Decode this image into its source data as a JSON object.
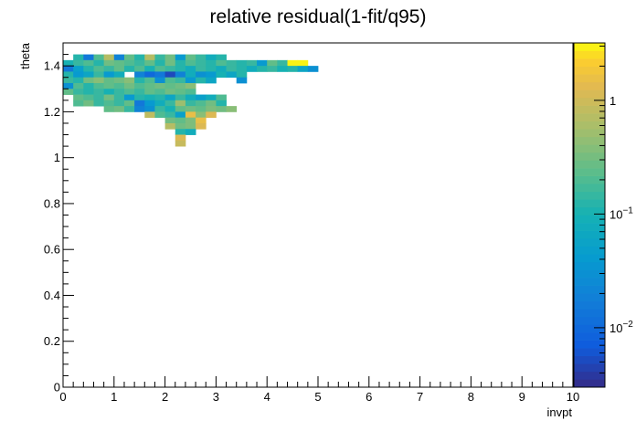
{
  "chart_data": {
    "type": "heatmap",
    "title": "relative residual(1-fit/q95)",
    "xlabel": "invpt",
    "ylabel": "theta",
    "xlim": [
      0,
      10
    ],
    "ylim": [
      0,
      1.5
    ],
    "x_ticks": [
      "0",
      "1",
      "2",
      "3",
      "4",
      "5",
      "6",
      "7",
      "8",
      "9",
      "10"
    ],
    "y_ticks": [
      "0",
      "0.2",
      "0.4",
      "0.6",
      "0.8",
      "1",
      "1.2",
      "1.4"
    ],
    "x_bin_width": 0.2,
    "y_bin_width": 0.025,
    "colorbar": {
      "scale": "log",
      "range": [
        0.003,
        3.2
      ],
      "ticks": [
        {
          "value": 0.01,
          "base": "10",
          "exp": "−2"
        },
        {
          "value": 0.1,
          "base": "10",
          "exp": "−1"
        },
        {
          "value": 1,
          "base": "1",
          "exp": ""
        }
      ]
    },
    "cells": [
      [
        0.2,
        1.425,
        0.12
      ],
      [
        0.4,
        1.425,
        0.015
      ],
      [
        0.6,
        1.425,
        0.2
      ],
      [
        0.8,
        1.425,
        0.7
      ],
      [
        1.0,
        1.425,
        0.02
      ],
      [
        1.2,
        1.425,
        0.25
      ],
      [
        1.4,
        1.425,
        0.12
      ],
      [
        1.6,
        1.425,
        0.7
      ],
      [
        1.8,
        1.425,
        0.15
      ],
      [
        2.0,
        1.425,
        0.3
      ],
      [
        2.2,
        1.425,
        0.04
      ],
      [
        2.4,
        1.425,
        0.25
      ],
      [
        2.6,
        1.425,
        0.15
      ],
      [
        2.8,
        1.425,
        0.08
      ],
      [
        3.0,
        1.425,
        0.12
      ],
      [
        0.0,
        1.4,
        0.1
      ],
      [
        0.2,
        1.4,
        0.15
      ],
      [
        0.4,
        1.4,
        0.2
      ],
      [
        0.6,
        1.4,
        0.12
      ],
      [
        0.8,
        1.4,
        0.3
      ],
      [
        1.0,
        1.4,
        0.25
      ],
      [
        1.2,
        1.4,
        0.2
      ],
      [
        1.4,
        1.4,
        0.15
      ],
      [
        1.6,
        1.4,
        0.25
      ],
      [
        1.8,
        1.4,
        0.12
      ],
      [
        2.0,
        1.4,
        0.3
      ],
      [
        2.2,
        1.4,
        0.12
      ],
      [
        2.4,
        1.4,
        0.2
      ],
      [
        2.6,
        1.4,
        0.15
      ],
      [
        2.8,
        1.4,
        0.12
      ],
      [
        3.0,
        1.4,
        0.2
      ],
      [
        3.2,
        1.4,
        0.15
      ],
      [
        3.4,
        1.4,
        0.12
      ],
      [
        3.6,
        1.4,
        0.15
      ],
      [
        3.8,
        1.4,
        0.04
      ],
      [
        4.0,
        1.4,
        0.25
      ],
      [
        4.2,
        1.4,
        0.15
      ],
      [
        4.4,
        1.4,
        3.0
      ],
      [
        4.6,
        1.4,
        3.0
      ],
      [
        0.0,
        1.375,
        0.015
      ],
      [
        0.2,
        1.375,
        0.05
      ],
      [
        0.4,
        1.375,
        0.12
      ],
      [
        0.6,
        1.375,
        0.2
      ],
      [
        0.8,
        1.375,
        0.15
      ],
      [
        1.0,
        1.375,
        0.25
      ],
      [
        1.2,
        1.375,
        0.12
      ],
      [
        1.4,
        1.375,
        0.2
      ],
      [
        1.6,
        1.375,
        0.1
      ],
      [
        1.8,
        1.375,
        0.2
      ],
      [
        2.0,
        1.375,
        0.15
      ],
      [
        2.2,
        1.375,
        0.12
      ],
      [
        2.4,
        1.375,
        0.08
      ],
      [
        2.6,
        1.375,
        0.15
      ],
      [
        2.8,
        1.375,
        0.12
      ],
      [
        3.0,
        1.375,
        0.08
      ],
      [
        3.2,
        1.375,
        0.15
      ],
      [
        3.4,
        1.375,
        0.12
      ],
      [
        3.6,
        1.375,
        0.08
      ],
      [
        3.8,
        1.375,
        0.12
      ],
      [
        4.0,
        1.375,
        0.15
      ],
      [
        4.2,
        1.375,
        0.1
      ],
      [
        4.4,
        1.375,
        0.12
      ],
      [
        4.6,
        1.375,
        0.06
      ],
      [
        4.8,
        1.375,
        0.03
      ],
      [
        0.0,
        1.35,
        0.12
      ],
      [
        0.2,
        1.35,
        0.04
      ],
      [
        0.4,
        1.35,
        0.06
      ],
      [
        0.6,
        1.35,
        0.15
      ],
      [
        0.8,
        1.35,
        0.04
      ],
      [
        1.0,
        1.35,
        0.08
      ],
      [
        1.4,
        1.35,
        0.02
      ],
      [
        1.6,
        1.35,
        0.01
      ],
      [
        1.8,
        1.35,
        0.015
      ],
      [
        2.0,
        1.35,
        0.005
      ],
      [
        2.2,
        1.35,
        0.02
      ],
      [
        2.4,
        1.35,
        0.08
      ],
      [
        2.6,
        1.35,
        0.03
      ],
      [
        2.8,
        1.35,
        0.04
      ],
      [
        3.0,
        1.35,
        0.1
      ],
      [
        3.2,
        1.35,
        0.06
      ],
      [
        3.4,
        1.35,
        0.12
      ],
      [
        0.0,
        1.325,
        0.15
      ],
      [
        0.2,
        1.325,
        0.12
      ],
      [
        0.4,
        1.325,
        0.3
      ],
      [
        0.6,
        1.325,
        0.4
      ],
      [
        0.8,
        1.325,
        0.25
      ],
      [
        1.0,
        1.325,
        0.3
      ],
      [
        1.2,
        1.325,
        0.4
      ],
      [
        1.4,
        1.325,
        0.12
      ],
      [
        1.6,
        1.325,
        0.2
      ],
      [
        1.8,
        1.325,
        0.03
      ],
      [
        2.0,
        1.325,
        0.2
      ],
      [
        2.2,
        1.325,
        0.15
      ],
      [
        2.4,
        1.325,
        0.04
      ],
      [
        2.6,
        1.325,
        0.12
      ],
      [
        2.8,
        1.325,
        0.06
      ],
      [
        3.4,
        1.325,
        0.03
      ],
      [
        0.0,
        1.3,
        0.03
      ],
      [
        0.2,
        1.3,
        0.2
      ],
      [
        0.4,
        1.3,
        0.12
      ],
      [
        0.6,
        1.3,
        0.2
      ],
      [
        0.8,
        1.3,
        0.25
      ],
      [
        1.0,
        1.3,
        0.2
      ],
      [
        1.2,
        1.3,
        0.3
      ],
      [
        1.4,
        1.3,
        0.2
      ],
      [
        1.6,
        1.3,
        0.25
      ],
      [
        1.8,
        1.3,
        0.3
      ],
      [
        2.0,
        1.3,
        0.25
      ],
      [
        2.2,
        1.3,
        0.3
      ],
      [
        2.4,
        1.3,
        0.4
      ],
      [
        0.0,
        1.275,
        0.25
      ],
      [
        0.2,
        1.275,
        0.15
      ],
      [
        0.4,
        1.275,
        0.12
      ],
      [
        0.6,
        1.275,
        0.15
      ],
      [
        0.8,
        1.275,
        0.1
      ],
      [
        1.0,
        1.275,
        0.15
      ],
      [
        1.2,
        1.275,
        0.2
      ],
      [
        1.4,
        1.275,
        0.15
      ],
      [
        1.6,
        1.275,
        0.25
      ],
      [
        1.8,
        1.275,
        0.2
      ],
      [
        2.0,
        1.275,
        0.3
      ],
      [
        2.2,
        1.275,
        0.25
      ],
      [
        2.4,
        1.275,
        0.2
      ],
      [
        0.2,
        1.25,
        0.25
      ],
      [
        0.4,
        1.25,
        0.2
      ],
      [
        0.6,
        1.25,
        0.15
      ],
      [
        0.8,
        1.25,
        0.3
      ],
      [
        1.0,
        1.25,
        0.15
      ],
      [
        1.2,
        1.25,
        0.04
      ],
      [
        1.4,
        1.25,
        0.12
      ],
      [
        1.6,
        1.25,
        0.1
      ],
      [
        1.8,
        1.25,
        0.12
      ],
      [
        2.0,
        1.25,
        0.06
      ],
      [
        2.2,
        1.25,
        0.15
      ],
      [
        2.4,
        1.25,
        0.08
      ],
      [
        2.6,
        1.25,
        0.05
      ],
      [
        2.8,
        1.25,
        0.08
      ],
      [
        3.0,
        1.25,
        0.2
      ],
      [
        0.2,
        1.225,
        0.2
      ],
      [
        0.4,
        1.225,
        0.3
      ],
      [
        0.6,
        1.225,
        0.15
      ],
      [
        0.8,
        1.225,
        0.2
      ],
      [
        1.0,
        1.225,
        0.15
      ],
      [
        1.2,
        1.225,
        0.25
      ],
      [
        1.4,
        1.225,
        0.015
      ],
      [
        1.6,
        1.225,
        0.04
      ],
      [
        1.8,
        1.225,
        0.08
      ],
      [
        2.0,
        1.225,
        0.15
      ],
      [
        2.2,
        1.225,
        0.5
      ],
      [
        2.4,
        1.225,
        0.15
      ],
      [
        2.6,
        1.225,
        0.2
      ],
      [
        2.8,
        1.225,
        0.3
      ],
      [
        3.0,
        1.225,
        0.12
      ],
      [
        0.8,
        1.2,
        0.25
      ],
      [
        1.0,
        1.2,
        0.3
      ],
      [
        1.2,
        1.2,
        0.15
      ],
      [
        1.4,
        1.2,
        0.02
      ],
      [
        1.6,
        1.2,
        0.03
      ],
      [
        1.8,
        1.2,
        0.15
      ],
      [
        2.0,
        1.2,
        0.1
      ],
      [
        2.2,
        1.2,
        0.25
      ],
      [
        2.4,
        1.2,
        0.3
      ],
      [
        2.6,
        1.2,
        0.25
      ],
      [
        2.8,
        1.2,
        0.35
      ],
      [
        3.0,
        1.2,
        0.3
      ],
      [
        3.2,
        1.2,
        0.4
      ],
      [
        1.6,
        1.175,
        0.8
      ],
      [
        1.8,
        1.175,
        0.2
      ],
      [
        2.0,
        1.175,
        0.15
      ],
      [
        2.2,
        1.175,
        0.05
      ],
      [
        2.4,
        1.175,
        1.5
      ],
      [
        2.6,
        1.175,
        0.4
      ],
      [
        2.8,
        1.175,
        1.2
      ],
      [
        2.0,
        1.15,
        0.3
      ],
      [
        2.2,
        1.15,
        0.25
      ],
      [
        2.4,
        1.15,
        0.35
      ],
      [
        2.6,
        1.15,
        1.5
      ],
      [
        2.0,
        1.125,
        0.7
      ],
      [
        2.2,
        1.125,
        0.3
      ],
      [
        2.4,
        1.125,
        0.35
      ],
      [
        2.6,
        1.125,
        1.2
      ],
      [
        2.2,
        1.1,
        0.12
      ],
      [
        2.4,
        1.1,
        0.08
      ],
      [
        2.2,
        1.075,
        1.2
      ],
      [
        2.2,
        1.05,
        0.9
      ]
    ]
  }
}
